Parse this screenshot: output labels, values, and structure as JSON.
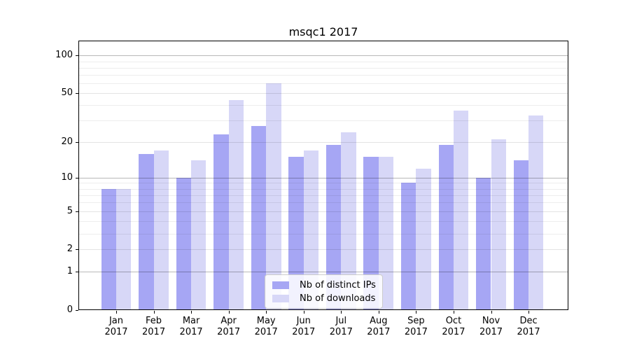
{
  "chart_data": {
    "type": "bar",
    "title": "msqc1 2017",
    "year": "2017",
    "categories": [
      "Jan",
      "Feb",
      "Mar",
      "Apr",
      "May",
      "Jun",
      "Jul",
      "Aug",
      "Sep",
      "Oct",
      "Nov",
      "Dec"
    ],
    "series": [
      {
        "name": "Nb of distinct IPs",
        "color": "#a6a6f4",
        "values": [
          8,
          16,
          10,
          23,
          27,
          15,
          19,
          15,
          9,
          19,
          10,
          14
        ]
      },
      {
        "name": "Nb of downloads",
        "color": "#d7d7f7",
        "values": [
          8,
          17,
          14,
          44,
          60,
          17,
          24,
          15,
          12,
          36,
          21,
          33
        ]
      }
    ],
    "xlabel": "",
    "ylabel": "",
    "yscale": "log1p",
    "ylim": [
      0,
      130
    ],
    "y_tick_labels": [
      100,
      50,
      20,
      10,
      5,
      2,
      1,
      0
    ],
    "y_major_gridlines": [
      1,
      10,
      100
    ],
    "y_mid_gridlines": [
      2,
      5,
      20,
      50
    ],
    "y_minor_gridlines": [
      3,
      4,
      6,
      7,
      8,
      9,
      30,
      40,
      60,
      70,
      80,
      90
    ],
    "grid": true,
    "legend_position": "lower center",
    "frame_color": "#000000",
    "background_color": "#ffffff"
  }
}
